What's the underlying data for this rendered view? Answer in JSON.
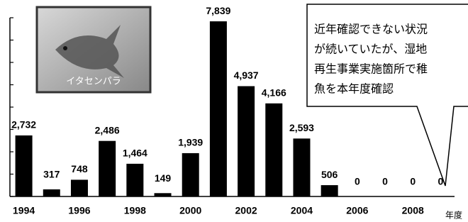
{
  "chart_data": {
    "type": "bar",
    "categories": [
      "1994",
      null,
      "1996",
      null,
      "1998",
      null,
      "2000",
      null,
      "2002",
      null,
      "2004",
      null,
      "2006",
      null,
      "2008",
      null
    ],
    "values": [
      2732,
      317,
      748,
      2486,
      1464,
      149,
      1939,
      7839,
      4937,
      4166,
      2593,
      506,
      0,
      0,
      0,
      0
    ],
    "value_labels": [
      "2,732",
      "317",
      "748",
      "2,486",
      "1,464",
      "149",
      "1,939",
      "7,839",
      "4,937",
      "4,166",
      "2,593",
      "506",
      "0",
      "0",
      "0",
      "0"
    ],
    "color": "#000000",
    "ylim": [
      0,
      8000
    ],
    "yticks": [
      0,
      1000,
      2000,
      3000,
      4000,
      5000,
      6000,
      7000,
      8000
    ],
    "x_label": "年度",
    "image_caption": "イタセンパラ",
    "annotation": [
      "近年確認できない状況",
      "が続いていたが、湿地",
      "再生事業実施箇所で稚",
      "魚を本年度確認"
    ]
  }
}
